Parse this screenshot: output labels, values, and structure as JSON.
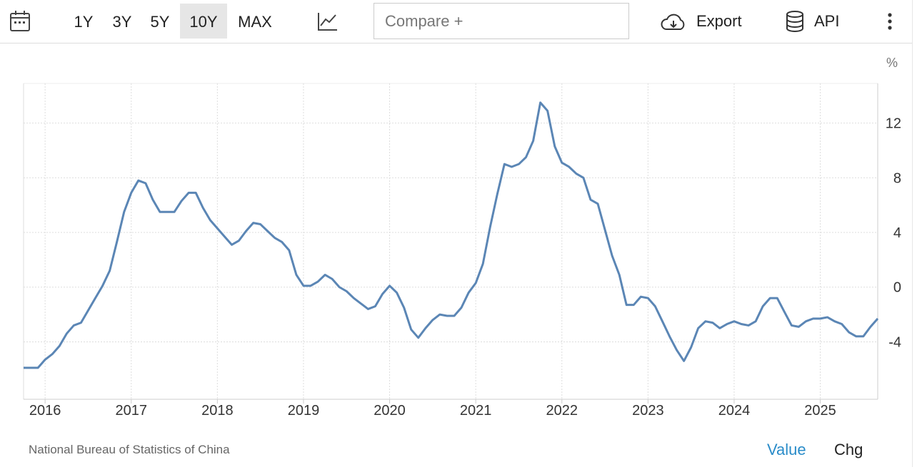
{
  "toolbar": {
    "ranges": [
      "1Y",
      "3Y",
      "5Y",
      "10Y",
      "MAX"
    ],
    "active_range": 3,
    "compare_placeholder": "Compare +",
    "export": "Export",
    "api": "API"
  },
  "chart_data": {
    "type": "line",
    "unit": "%",
    "color": "#5b86b5",
    "grid": true,
    "x": [
      2015.75,
      2015.833,
      2015.917,
      2016,
      2016.083,
      2016.167,
      2016.25,
      2016.333,
      2016.417,
      2016.5,
      2016.583,
      2016.667,
      2016.75,
      2016.833,
      2016.917,
      2017,
      2017.083,
      2017.167,
      2017.25,
      2017.333,
      2017.417,
      2017.5,
      2017.583,
      2017.667,
      2017.75,
      2017.833,
      2017.917,
      2018,
      2018.083,
      2018.167,
      2018.25,
      2018.333,
      2018.417,
      2018.5,
      2018.583,
      2018.667,
      2018.75,
      2018.833,
      2018.917,
      2019,
      2019.083,
      2019.167,
      2019.25,
      2019.333,
      2019.417,
      2019.5,
      2019.583,
      2019.667,
      2019.75,
      2019.833,
      2019.917,
      2020,
      2020.083,
      2020.167,
      2020.25,
      2020.333,
      2020.417,
      2020.5,
      2020.583,
      2020.667,
      2020.75,
      2020.833,
      2020.917,
      2021,
      2021.083,
      2021.167,
      2021.25,
      2021.333,
      2021.417,
      2021.5,
      2021.583,
      2021.667,
      2021.75,
      2021.833,
      2021.917,
      2022,
      2022.083,
      2022.167,
      2022.25,
      2022.333,
      2022.417,
      2022.5,
      2022.583,
      2022.667,
      2022.75,
      2022.833,
      2022.917,
      2023,
      2023.083,
      2023.167,
      2023.25,
      2023.333,
      2023.417,
      2023.5,
      2023.583,
      2023.667,
      2023.75,
      2023.833,
      2023.917,
      2024,
      2024.083,
      2024.167,
      2024.25,
      2024.333,
      2024.417,
      2024.5,
      2024.583,
      2024.667,
      2024.75,
      2024.833,
      2024.917,
      2025,
      2025.083,
      2025.167,
      2025.25,
      2025.333,
      2025.417,
      2025.5,
      2025.583,
      2025.667
    ],
    "values": [
      -5.9,
      -5.9,
      -5.9,
      -5.3,
      -4.9,
      -4.3,
      -3.4,
      -2.8,
      -2.6,
      -1.7,
      -0.8,
      0.1,
      1.2,
      3.3,
      5.5,
      6.9,
      7.8,
      7.6,
      6.4,
      5.5,
      5.5,
      5.5,
      6.3,
      6.9,
      6.9,
      5.8,
      4.9,
      4.3,
      3.7,
      3.1,
      3.4,
      4.1,
      4.7,
      4.6,
      4.1,
      3.6,
      3.3,
      2.7,
      0.9,
      0.1,
      0.1,
      0.4,
      0.9,
      0.6,
      0.0,
      -0.3,
      -0.8,
      -1.2,
      -1.6,
      -1.4,
      -0.5,
      0.1,
      -0.4,
      -1.5,
      -3.1,
      -3.7,
      -3.0,
      -2.4,
      -2.0,
      -2.1,
      -2.1,
      -1.5,
      -0.4,
      0.3,
      1.7,
      4.4,
      6.8,
      9.0,
      8.8,
      9.0,
      9.5,
      10.7,
      13.5,
      12.9,
      10.3,
      9.1,
      8.8,
      8.3,
      8.0,
      6.4,
      6.1,
      4.2,
      2.3,
      0.9,
      -1.3,
      -1.3,
      -0.7,
      -0.8,
      -1.4,
      -2.5,
      -3.6,
      -4.6,
      -5.4,
      -4.4,
      -3.0,
      -2.5,
      -2.6,
      -3.0,
      -2.7,
      -2.5,
      -2.7,
      -2.8,
      -2.5,
      -1.4,
      -0.8,
      -0.8,
      -1.8,
      -2.8,
      -2.9,
      -2.5,
      -2.3,
      -2.3,
      -2.2,
      -2.5,
      -2.7,
      -3.3,
      -3.6,
      -3.6,
      -2.9,
      -2.3
    ],
    "xlim": [
      2015.75,
      2025.667
    ],
    "xticks": [
      2016,
      2017,
      2018,
      2019,
      2020,
      2021,
      2022,
      2023,
      2024,
      2025
    ],
    "ylim": [
      -8.2,
      14.9
    ],
    "yticks": [
      -4,
      0,
      4,
      8,
      12
    ]
  },
  "footer": {
    "source": "National Bureau of Statistics of China",
    "value_tab": "Value",
    "change_tab": "Chg"
  }
}
